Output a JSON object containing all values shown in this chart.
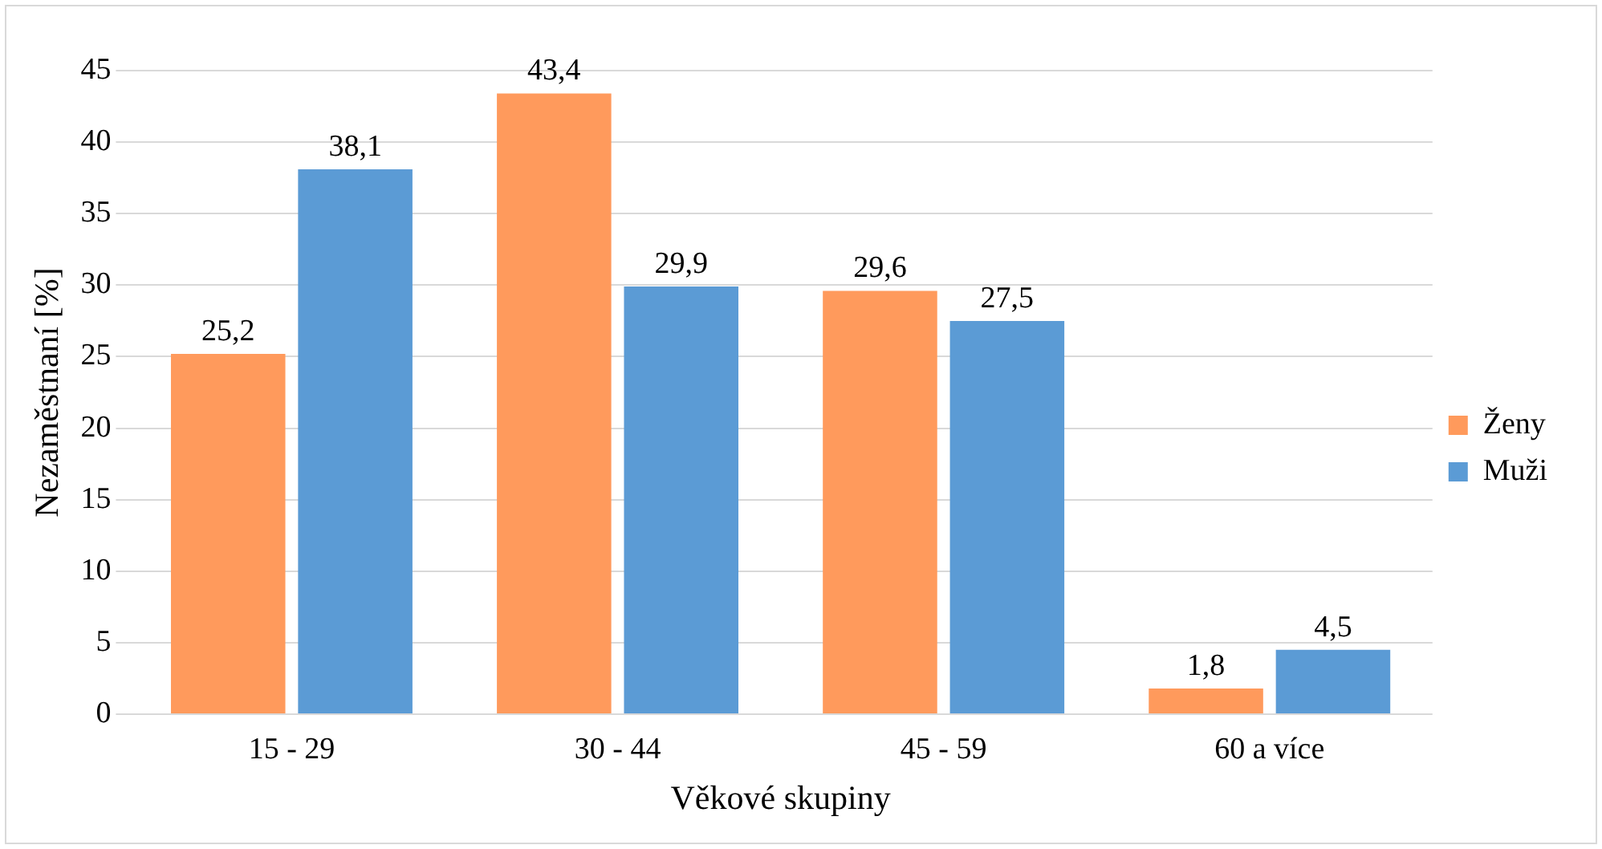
{
  "chart_data": {
    "type": "bar",
    "xlabel": "Věkové skupiny",
    "ylabel": "Nezaměstnaní [%]",
    "categories": [
      "15 - 29",
      "30 - 44",
      "45 - 59",
      "60 a více"
    ],
    "series": [
      {
        "name": "Ženy",
        "color": "#ff9a5c",
        "values": [
          25.2,
          43.4,
          29.6,
          1.8
        ],
        "value_labels": [
          "25,2",
          "43,4",
          "29,6",
          "1,8"
        ]
      },
      {
        "name": "Muži",
        "color": "#5b9bd5",
        "values": [
          38.1,
          29.9,
          27.5,
          4.5
        ],
        "value_labels": [
          "38,1",
          "29,9",
          "27,5",
          "4,5"
        ]
      }
    ],
    "ylim": [
      0,
      45
    ],
    "yticks": [
      0,
      5,
      10,
      15,
      20,
      25,
      30,
      35,
      40,
      45
    ],
    "grid": "y",
    "legend": "right"
  }
}
